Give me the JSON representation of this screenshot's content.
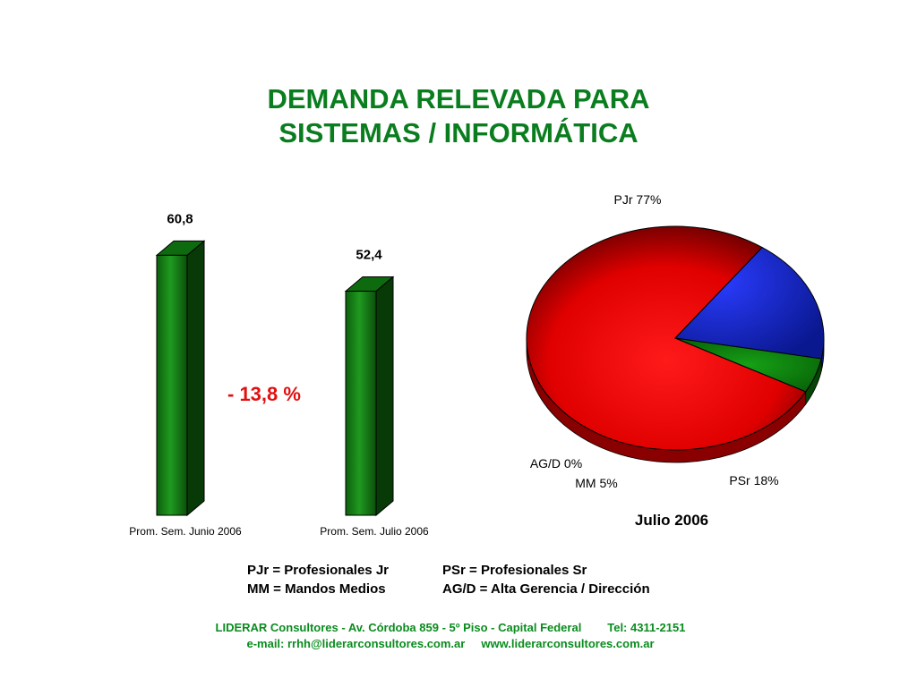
{
  "title": {
    "line1": "DEMANDA RELEVADA PARA",
    "line2": "SISTEMAS / INFORMÁTICA"
  },
  "change_label": "- 13,8 %",
  "pie_caption": "Julio 2006",
  "legend": {
    "row1_left": "PJr = Profesionales Jr",
    "row1_right": "PSr = Profesionales Sr",
    "row2_left": "MM = Mandos Medios",
    "row2_right": "AG/D = Alta Gerencia / Dirección"
  },
  "footer": {
    "line1_address": "LIDERAR Consultores - Av. Córdoba 859 - 5º Piso - Capital Federal",
    "line1_phone": "Tel: 4311-2151",
    "line2_email": "e-mail: rrhh@liderarconsultores.com.ar",
    "line2_web": "www.liderarconsultores.com.ar"
  },
  "colors": {
    "title": "#0a7d1e",
    "bar": "#1a8a1a",
    "change": "#e01010",
    "pie_pjr": "#e80000",
    "pie_psr": "#1a2adf",
    "pie_mm": "#0a8a0a",
    "footer": "#0a8c1e"
  },
  "chart_data": [
    {
      "type": "bar",
      "categories": [
        "Prom. Sem. Junio  2006",
        "Prom. Sem. Julio  2006"
      ],
      "values": [
        60.8,
        52.4
      ],
      "value_labels": [
        "60,8",
        "52,4"
      ],
      "three_d": true
    },
    {
      "type": "pie",
      "labels": [
        "PJr",
        "PSr",
        "MM",
        "AG/D"
      ],
      "values": [
        77,
        18,
        5,
        0
      ],
      "value_labels": [
        "PJr 77%",
        "PSr 18%",
        "MM 5%",
        "AG/D 0%"
      ],
      "three_d": true
    }
  ]
}
